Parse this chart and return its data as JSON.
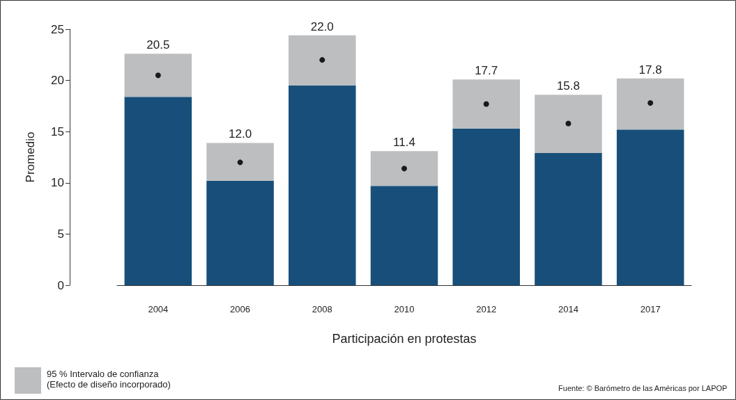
{
  "chart_data": {
    "type": "bar",
    "stacked": true,
    "ylabel": "Promedio",
    "xlabel": "Participación en protestas",
    "categories": [
      "2004",
      "2006",
      "2008",
      "2010",
      "2012",
      "2014",
      "2017"
    ],
    "series": [
      {
        "color": "#174f7a",
        "values": [
          18.4,
          10.2,
          19.5,
          9.7,
          15.3,
          12.9,
          15.2
        ]
      },
      {
        "name": "95 % Intervalo de confianza (Efecto de diseño incorporado)",
        "color": "#bcbec0",
        "values": [
          4.2,
          3.7,
          4.9,
          3.4,
          4.8,
          5.7,
          5.0
        ]
      },
      {
        "type": "scatter",
        "color": "#1a1a1a",
        "values": [
          20.5,
          12.0,
          22.0,
          11.4,
          17.7,
          15.8,
          17.8
        ],
        "value_labels": [
          "20.5",
          "12.0",
          "22.0",
          "11.4",
          "17.7",
          "15.8",
          "17.8"
        ]
      }
    ],
    "marker": "circle",
    "ylim": [
      0,
      25
    ],
    "yticks": [
      0,
      5,
      10,
      15,
      20,
      25
    ],
    "grid": false,
    "legend": "bottom left",
    "annotations": [
      "Fuente: © Barómetro de las Américas por LAPOP"
    ]
  }
}
